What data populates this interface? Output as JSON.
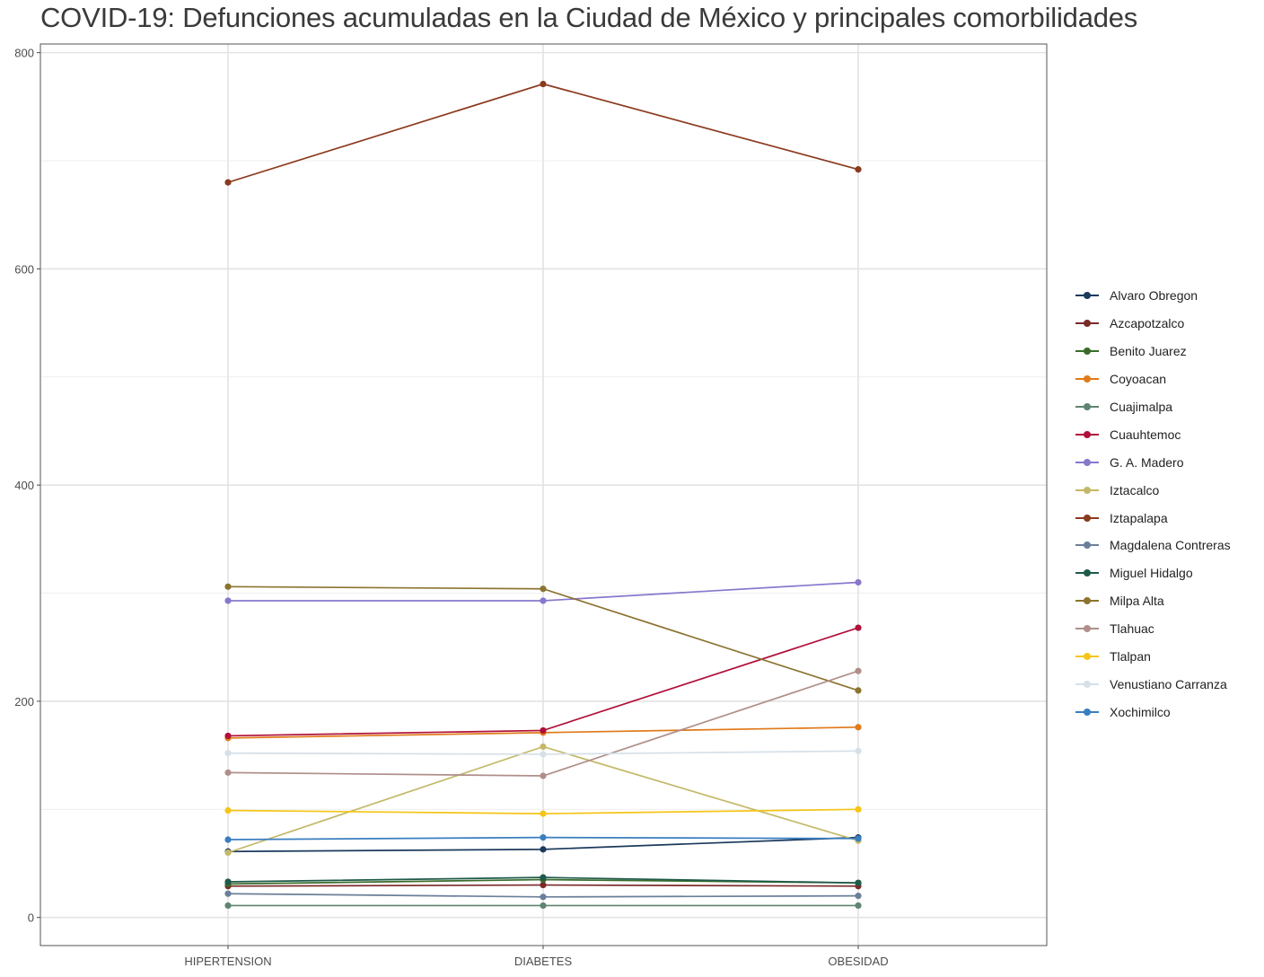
{
  "chart_data": {
    "type": "line",
    "title": "COVID-19: Defunciones acumuladas en la Ciudad de México y principales comorbilidades",
    "xlabel": "",
    "ylabel": "",
    "categories": [
      "HIPERTENSION",
      "DIABETES",
      "OBESIDAD"
    ],
    "ylim": [
      -26,
      808
    ],
    "yticks": [
      0,
      200,
      400,
      600,
      800
    ],
    "grid": true,
    "legend_position": "right",
    "series": [
      {
        "name": "Alvaro Obregon",
        "color": "#1b3a5c",
        "values": [
          61,
          63,
          74
        ]
      },
      {
        "name": "Azcapotzalco",
        "color": "#7b2a2a",
        "values": [
          29,
          30,
          29
        ]
      },
      {
        "name": "Benito Juarez",
        "color": "#3a6b2a",
        "values": [
          31,
          35,
          32
        ]
      },
      {
        "name": "Coyoacan",
        "color": "#e07a1a",
        "values": [
          166,
          171,
          176
        ]
      },
      {
        "name": "Cuajimalpa",
        "color": "#5e8472",
        "values": [
          11,
          11,
          11
        ]
      },
      {
        "name": "Cuauhtemoc",
        "color": "#b0103a",
        "values": [
          168,
          173,
          268
        ]
      },
      {
        "name": "G. A. Madero",
        "color": "#8877cc",
        "values": [
          293,
          293,
          310
        ]
      },
      {
        "name": "Iztacalco",
        "color": "#c4b868",
        "values": [
          60,
          158,
          71
        ]
      },
      {
        "name": "Iztapalapa",
        "color": "#8b3a1e",
        "values": [
          680,
          771,
          692
        ]
      },
      {
        "name": "Magdalena Contreras",
        "color": "#6b7f99",
        "values": [
          22,
          19,
          20
        ]
      },
      {
        "name": "Miguel Hidalgo",
        "color": "#1e5a4a",
        "values": [
          33,
          37,
          32
        ]
      },
      {
        "name": "Milpa Alta",
        "color": "#8c7430",
        "values": [
          306,
          304,
          210
        ]
      },
      {
        "name": "Tlahuac",
        "color": "#b08e8a",
        "values": [
          134,
          131,
          228
        ]
      },
      {
        "name": "Tlalpan",
        "color": "#f5c518",
        "values": [
          99,
          96,
          100
        ]
      },
      {
        "name": "Venustiano Carranza",
        "color": "#d6e0e8",
        "values": [
          152,
          151,
          154
        ]
      },
      {
        "name": "Xochimilco",
        "color": "#3a7ec0",
        "values": [
          72,
          74,
          73
        ]
      }
    ]
  }
}
